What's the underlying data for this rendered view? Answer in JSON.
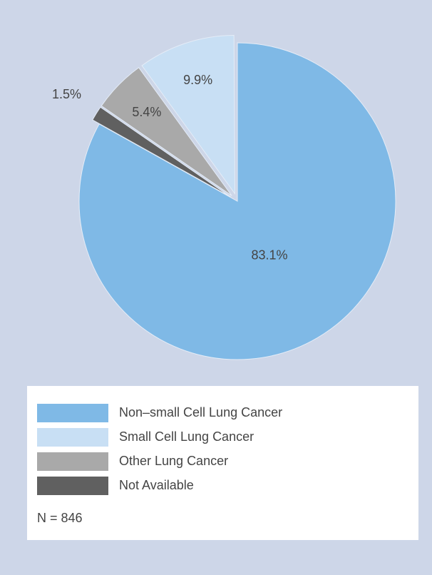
{
  "chart_data": {
    "type": "pie",
    "categories": [
      "Non–small Cell Lung Cancer",
      "Not Available",
      "Other Lung Cancer",
      "Small Cell Lung Cancer"
    ],
    "values": [
      83.1,
      1.5,
      5.4,
      9.9
    ],
    "value_labels": [
      "83.1%",
      "1.5%",
      "5.4%",
      "9.9%"
    ],
    "colors": [
      "#7fb9e6",
      "#606060",
      "#a9a9a9",
      "#c8dff4"
    ],
    "legend_order": [
      0,
      3,
      2,
      1
    ],
    "note": "N = 846"
  }
}
